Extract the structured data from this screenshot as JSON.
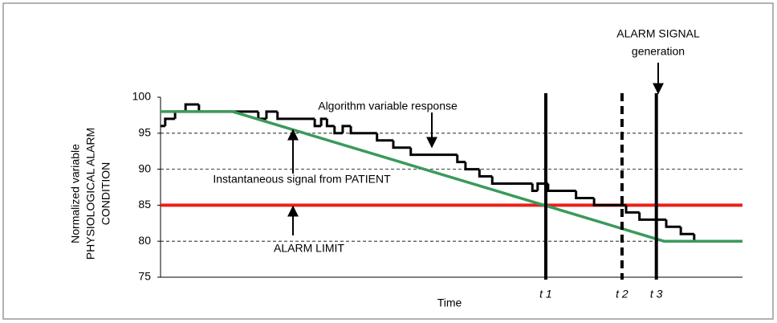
{
  "chart_data": {
    "type": "line",
    "ylabel": [
      "Normalized variable",
      "PHYSIOLOGICAL ALARM",
      "CONDITION"
    ],
    "xlabel": "Time",
    "xlim": [
      0,
      100
    ],
    "ylim": [
      75,
      100
    ],
    "yticks": [
      75,
      80,
      85,
      90,
      95,
      100
    ],
    "grid": true,
    "series": [
      {
        "name": "Algorithm variable response",
        "color": "#000000",
        "step": true,
        "x": [
          0,
          0.8,
          2.5,
          4.3,
          6.6,
          16.8,
          18.2,
          20.1,
          26.5,
          27.6,
          28.6,
          29.9,
          31.3,
          32.7,
          37.2,
          40,
          43,
          51,
          52.4,
          54.8,
          57,
          63.9,
          64.8,
          66.6,
          71.4,
          74.5,
          80,
          82.3,
          86.9,
          89.4,
          91.7
        ],
        "values": [
          96,
          97,
          98,
          99,
          98,
          97,
          98,
          97,
          96,
          97,
          96,
          95,
          96,
          95,
          94,
          93,
          92,
          91,
          90,
          89,
          88,
          87,
          88,
          87,
          86,
          85,
          84,
          83,
          82,
          81,
          80
        ]
      },
      {
        "name": "Instantaneous signal from PATIENT",
        "color": "#3a9a5b",
        "step": false,
        "x": [
          0,
          12.4,
          86.5,
          100
        ],
        "values": [
          98,
          98,
          80,
          80
        ]
      }
    ],
    "alarm_limit": {
      "label": "ALARM LIMIT",
      "value": 85,
      "color": "#e8201a"
    },
    "markers": [
      {
        "label": "t 1",
        "x": 66.2,
        "dashed": false
      },
      {
        "label": "t 2",
        "x": 79.3,
        "dashed": true
      },
      {
        "label": "t 3",
        "x": 85.2,
        "dashed": false
      }
    ],
    "alarm_signal": [
      "ALARM SIGNAL",
      "generation"
    ]
  }
}
